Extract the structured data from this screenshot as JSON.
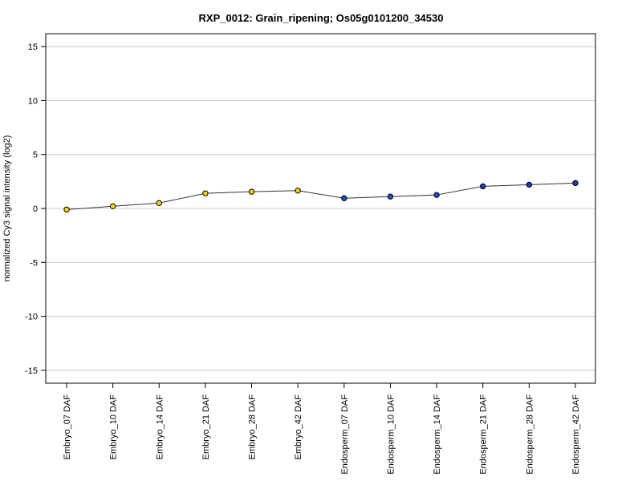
{
  "chart_data": {
    "type": "line",
    "title": "RXP_0012: Grain_ripening; Os05g0101200_34530",
    "xlabel": "",
    "ylabel": "normalized Cy3 signal intensity (log2)",
    "ylim": [
      -16.2,
      16.2
    ],
    "yticks": [
      -15,
      -10,
      -5,
      0,
      5,
      10,
      15
    ],
    "grid": true,
    "categories": [
      "Embryo_07 DAF",
      "Embryo_10 DAF",
      "Embryo_14 DAF",
      "Embryo_21 DAF",
      "Embryo_28 DAF",
      "Embryo_42 DAF",
      "Endosperm_07 DAF",
      "Endosperm_10 DAF",
      "Endosperm_14 DAF",
      "Endosperm_21 DAF",
      "Endosperm_28 DAF",
      "Endosperm_42 DAF"
    ],
    "series": [
      {
        "values": [
          -0.1,
          0.2,
          0.5,
          1.4,
          1.55,
          1.65,
          0.95,
          1.1,
          1.25,
          2.05,
          2.2,
          2.35
        ],
        "colors": [
          "#f2d21b",
          "#f2d21b",
          "#f2d21b",
          "#f2d21b",
          "#f2d21b",
          "#f2d21b",
          "#1f4fd8",
          "#1f4fd8",
          "#1f4fd8",
          "#1f3fb8",
          "#1f3fb8",
          "#1f3fb8"
        ],
        "line_color": "#333333"
      }
    ]
  }
}
